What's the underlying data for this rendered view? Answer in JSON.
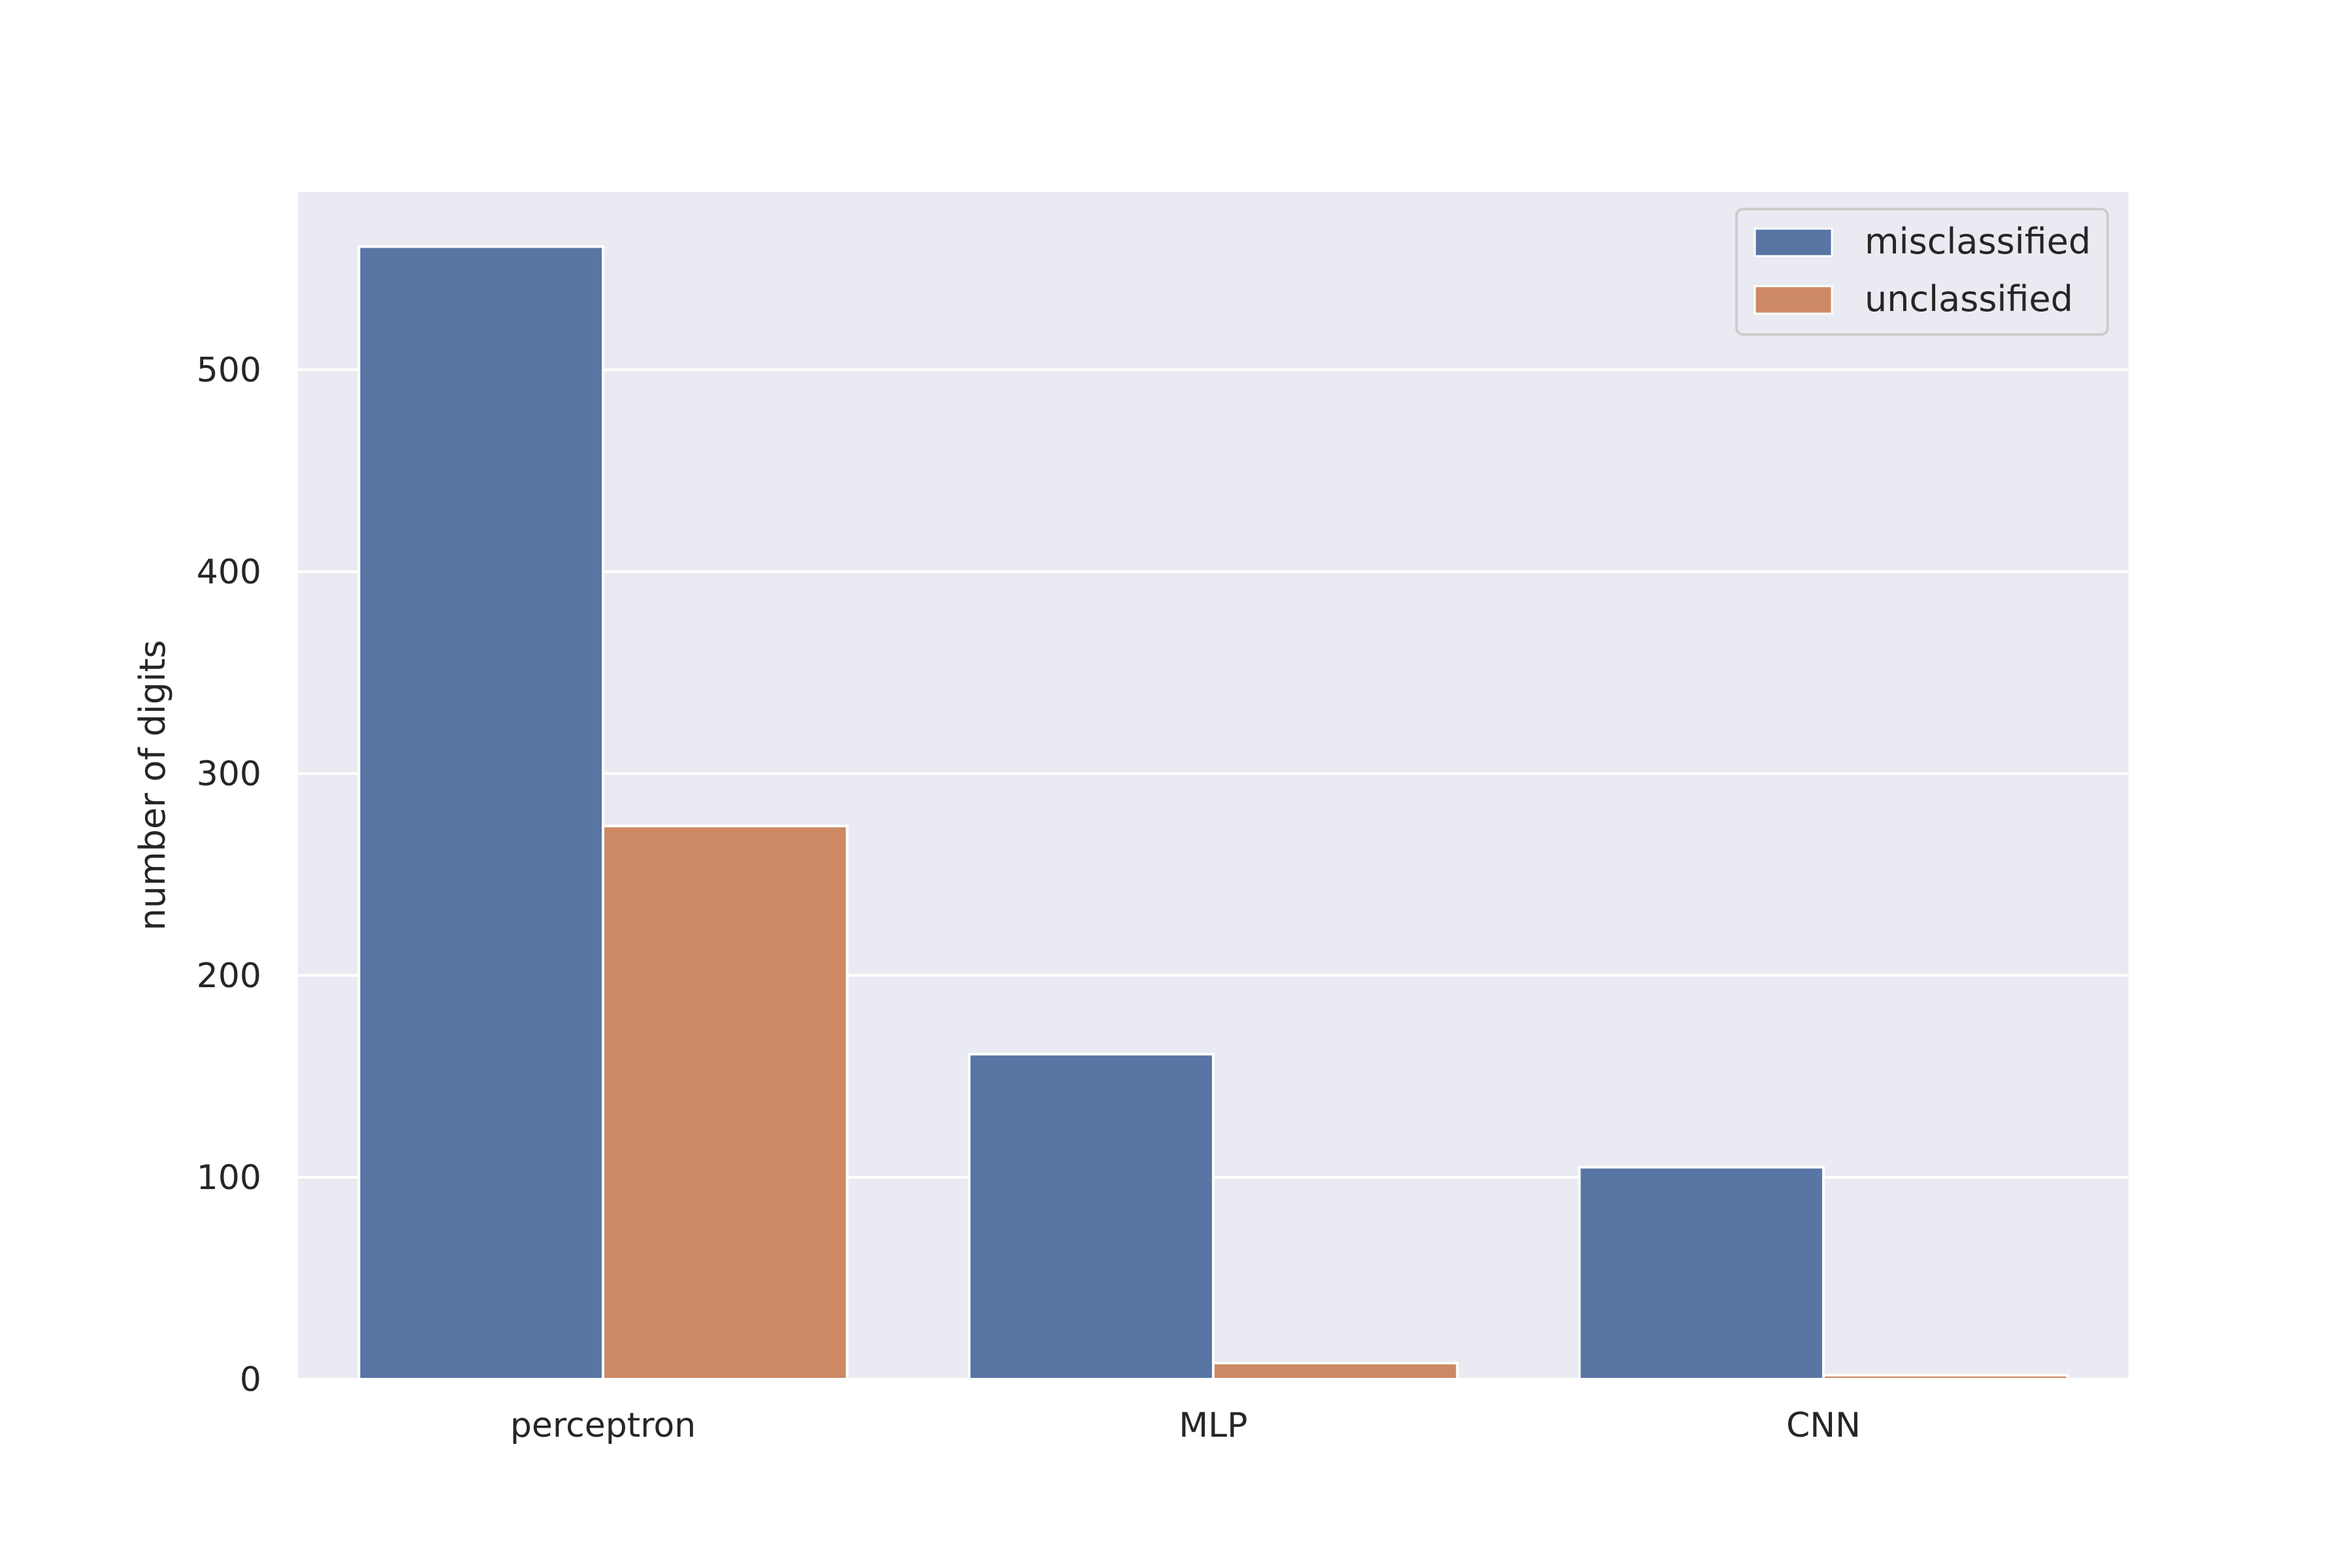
{
  "chart_data": {
    "type": "bar",
    "title": "",
    "xlabel": "",
    "ylabel": "number of digits",
    "categories": [
      "perceptron",
      "MLP",
      "CNN"
    ],
    "series": [
      {
        "name": "misclassified",
        "values": [
          561,
          161,
          105
        ]
      },
      {
        "name": "unclassified",
        "values": [
          274,
          8,
          2
        ]
      }
    ],
    "ylim": [
      0,
      588
    ],
    "yticks": [
      0,
      100,
      200,
      300,
      400,
      500
    ],
    "grid": true,
    "legend": "top-right",
    "colors": {
      "misclassified": "#5875a4",
      "unclassified": "#cc8963",
      "background": "#eaeaf2",
      "grid": "#ffffff"
    }
  }
}
